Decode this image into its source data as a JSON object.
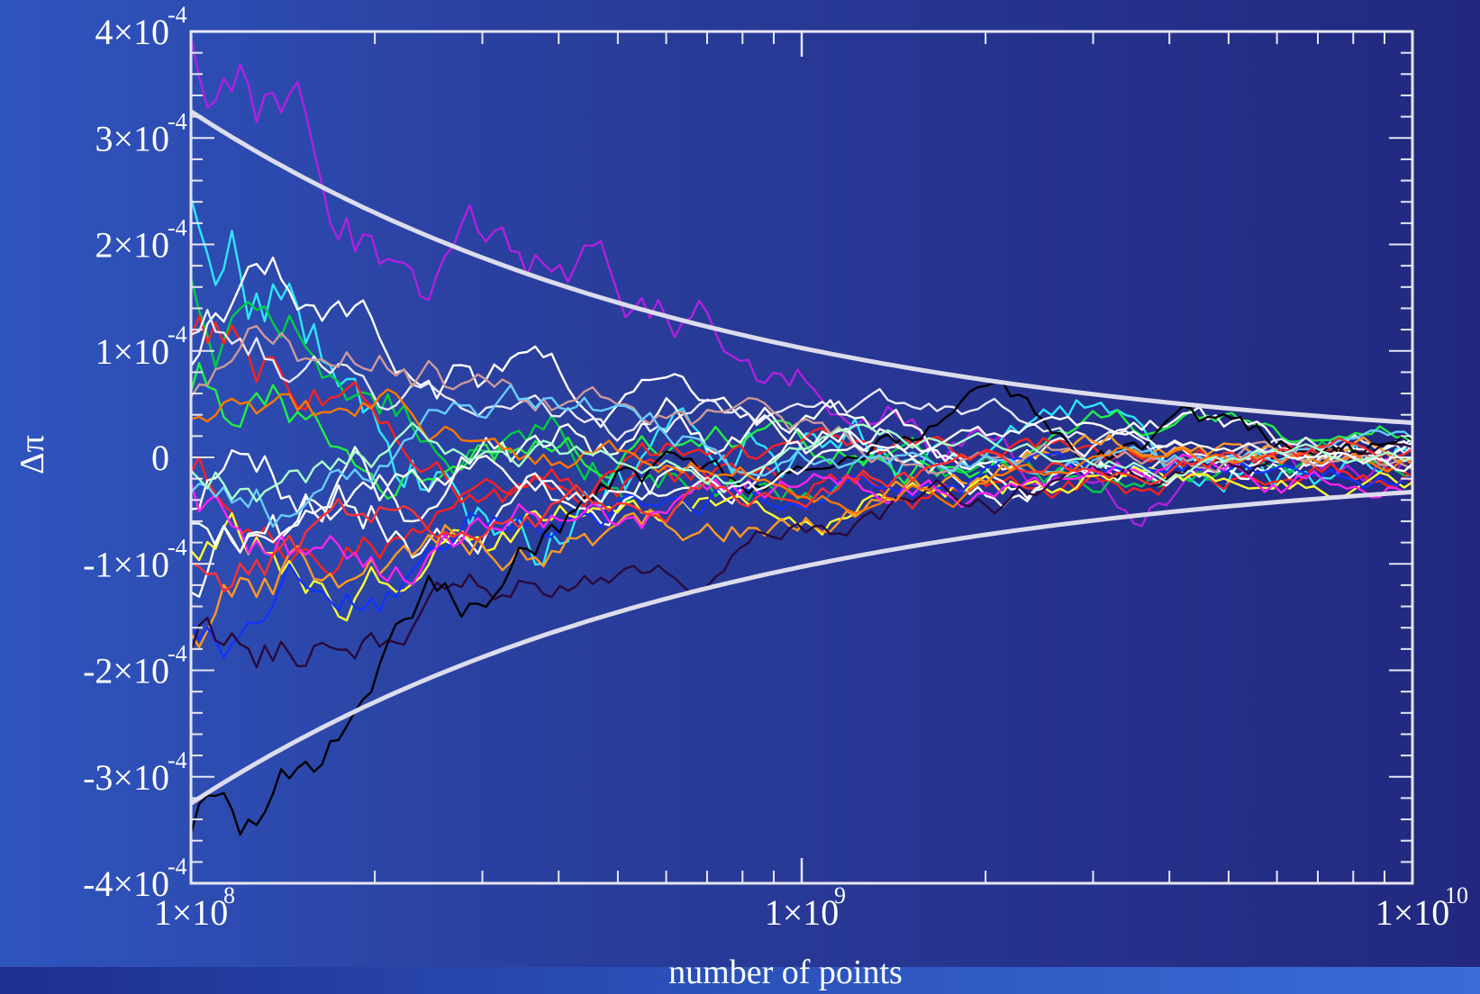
{
  "chart_data": {
    "type": "line",
    "xlabel": "number of points",
    "ylabel": "Δπ",
    "x_scale": "log",
    "xlim": [
      100000000,
      10000000000
    ],
    "ylim": [
      -0.0004,
      0.0004
    ],
    "grid": false,
    "legend": "none",
    "x_ticks": [
      {
        "value": 100000000,
        "mantissa": "1×10",
        "exp": "8"
      },
      {
        "value": 1000000000,
        "mantissa": "1×10",
        "exp": "9"
      },
      {
        "value": 10000000000,
        "mantissa": "1×10",
        "exp": "10"
      }
    ],
    "y_ticks": [
      {
        "value": 0.0004,
        "mantissa": "4×10",
        "exp": "-4"
      },
      {
        "value": 0.0003,
        "mantissa": "3×10",
        "exp": "-4"
      },
      {
        "value": 0.0002,
        "mantissa": "2×10",
        "exp": "-4"
      },
      {
        "value": 0.0001,
        "mantissa": "1×10",
        "exp": "-4"
      },
      {
        "value": 0,
        "mantissa": "0",
        "exp": ""
      },
      {
        "value": -0.0001,
        "mantissa": "-1×10",
        "exp": "-4"
      },
      {
        "value": -0.0002,
        "mantissa": "-2×10",
        "exp": "-4"
      },
      {
        "value": -0.0003,
        "mantissa": "-3×10",
        "exp": "-4"
      },
      {
        "value": -0.0004,
        "mantissa": "-4×10",
        "exp": "-4"
      }
    ],
    "envelope": {
      "color": "#dcdcec",
      "coefficient": 3.25,
      "x": [
        100000000,
        10000000000
      ]
    },
    "walk_points": 150,
    "series": [
      {
        "color": "#2ee6ff",
        "seed": 11,
        "start": 0.00025,
        "scale": 2.4
      },
      {
        "color": "#b020e0",
        "seed": 12,
        "start": 0.0004,
        "scale": 2.2
      },
      {
        "color": "#00cc44",
        "seed": 13,
        "start": 0.00017,
        "scale": 1.6
      },
      {
        "color": "#22ee44",
        "seed": 14,
        "start": 6e-05,
        "scale": 1.4
      },
      {
        "color": "#ff2020",
        "seed": 15,
        "start": 0.00011,
        "scale": 1.4
      },
      {
        "color": "#ff2020",
        "seed": 16,
        "start": -2e-05,
        "scale": 1.3
      },
      {
        "color": "#ffffff",
        "seed": 17,
        "start": 8e-05,
        "scale": 1.5
      },
      {
        "color": "#e8e8f8",
        "seed": 18,
        "start": 0.00011,
        "scale": 1.2
      },
      {
        "color": "#ffffff",
        "seed": 19,
        "start": -6e-05,
        "scale": 1.6
      },
      {
        "color": "#ffffff",
        "seed": 20,
        "start": -0.00014,
        "scale": 1.5
      },
      {
        "color": "#ffff33",
        "seed": 21,
        "start": -0.0001,
        "scale": 1.3
      },
      {
        "color": "#ff9922",
        "seed": 22,
        "start": -0.00018,
        "scale": 1.3
      },
      {
        "color": "#1133ff",
        "seed": 23,
        "start": -0.00017,
        "scale": 1.2
      },
      {
        "color": "#ff22ee",
        "seed": 24,
        "start": -4e-05,
        "scale": 1.4
      },
      {
        "color": "#2a0a3a",
        "seed": 25,
        "start": -0.0002,
        "scale": 1.2
      },
      {
        "color": "#000000",
        "seed": 26,
        "start": -0.00038,
        "scale": 1.6
      },
      {
        "color": "#cc9999",
        "seed": 27,
        "start": 4e-05,
        "scale": 1.2
      },
      {
        "color": "#66ccff",
        "seed": 28,
        "start": -5e-05,
        "scale": 1.1
      },
      {
        "color": "#ff7700",
        "seed": 29,
        "start": 2e-05,
        "scale": 1.0
      },
      {
        "color": "#ffffff",
        "seed": 30,
        "start": -8e-05,
        "scale": 1.0
      },
      {
        "color": "#ff3030",
        "seed": 31,
        "start": -0.00012,
        "scale": 1.1
      },
      {
        "color": "#aaffcc",
        "seed": 32,
        "start": -3e-05,
        "scale": 0.9
      }
    ]
  }
}
